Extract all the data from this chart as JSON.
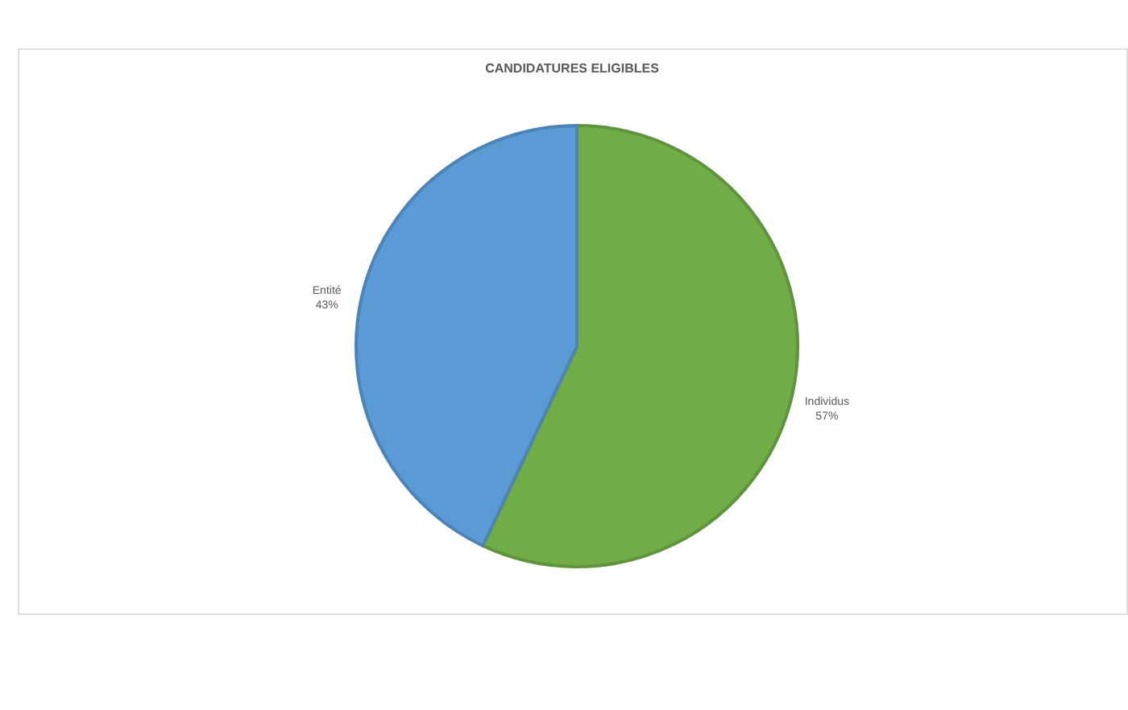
{
  "chart_data": {
    "type": "pie",
    "title": "CANDIDATURES ELIGIBLES",
    "categories": [
      "Individus",
      "Entité"
    ],
    "values": [
      57,
      43
    ],
    "colors": [
      "#70ad47",
      "#5b9bd5"
    ],
    "value_labels": [
      "57%",
      "43%"
    ]
  }
}
